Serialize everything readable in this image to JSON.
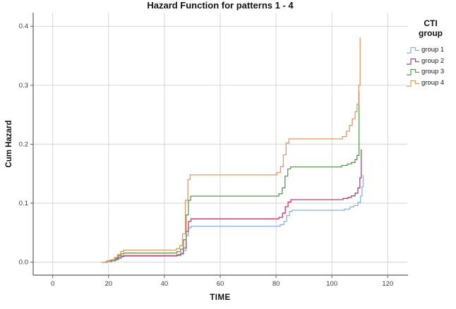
{
  "chart_data": {
    "type": "line",
    "subtype": "step",
    "title": "Hazard Function for patterns 1 - 4",
    "xlabel": "TIME",
    "ylabel": "Cum Hazard",
    "legend_title": "CTI group",
    "legend_position": "right",
    "grid": true,
    "xlim": [
      -7,
      127
    ],
    "ylim": [
      -0.022,
      0.423
    ],
    "xticks": [
      0,
      20,
      40,
      60,
      80,
      100,
      120
    ],
    "yticks": [
      0.0,
      0.1,
      0.2,
      0.3,
      0.4
    ],
    "series": [
      {
        "name": "group 1",
        "color": "#8BB1DA",
        "points": [
          [
            17.5,
            0
          ],
          [
            19.5,
            0.001
          ],
          [
            21,
            0.002
          ],
          [
            22.5,
            0.004
          ],
          [
            23.5,
            0.006
          ],
          [
            24.5,
            0.009
          ],
          [
            25.5,
            0.01
          ],
          [
            44.5,
            0.011
          ],
          [
            45.8,
            0.013
          ],
          [
            46.8,
            0.02
          ],
          [
            47.8,
            0.045
          ],
          [
            48.6,
            0.058
          ],
          [
            49.5,
            0.061
          ],
          [
            81.5,
            0.0635
          ],
          [
            82.8,
            0.069
          ],
          [
            83.8,
            0.079
          ],
          [
            84.8,
            0.086
          ],
          [
            85.8,
            0.088
          ],
          [
            104.5,
            0.09
          ],
          [
            106.5,
            0.0935
          ],
          [
            107.8,
            0.096
          ],
          [
            109.3,
            0.101
          ],
          [
            110.2,
            0.112
          ],
          [
            110.8,
            0.128
          ],
          [
            111.2,
            0.148
          ]
        ]
      },
      {
        "name": "group 2",
        "color": "#C23A6C",
        "points": [
          [
            17.5,
            0
          ],
          [
            19.5,
            0.001
          ],
          [
            21,
            0.003
          ],
          [
            22.5,
            0.005
          ],
          [
            23.5,
            0.008
          ],
          [
            24.5,
            0.01
          ],
          [
            25.5,
            0.011
          ],
          [
            44.5,
            0.0125
          ],
          [
            45.8,
            0.015
          ],
          [
            46.8,
            0.024
          ],
          [
            47.8,
            0.052
          ],
          [
            48.6,
            0.069
          ],
          [
            49.5,
            0.0735
          ],
          [
            81,
            0.076
          ],
          [
            82.3,
            0.083
          ],
          [
            83.3,
            0.094
          ],
          [
            84.3,
            0.102
          ],
          [
            85.3,
            0.106
          ],
          [
            104,
            0.108
          ],
          [
            105.8,
            0.11
          ],
          [
            107,
            0.1125
          ],
          [
            108.3,
            0.117
          ],
          [
            109.3,
            0.126
          ],
          [
            110,
            0.143
          ],
          [
            110.5,
            0.191
          ]
        ]
      },
      {
        "name": "group 3",
        "color": "#5E9657",
        "points": [
          [
            17.5,
            0
          ],
          [
            19.5,
            0.002
          ],
          [
            21,
            0.004
          ],
          [
            22.5,
            0.007
          ],
          [
            23.5,
            0.011
          ],
          [
            24.5,
            0.014
          ],
          [
            25.5,
            0.0155
          ],
          [
            44.5,
            0.018
          ],
          [
            45.8,
            0.022
          ],
          [
            46.8,
            0.038
          ],
          [
            47.8,
            0.08
          ],
          [
            48.6,
            0.105
          ],
          [
            49.4,
            0.112
          ],
          [
            81,
            0.116
          ],
          [
            82.2,
            0.126
          ],
          [
            83.2,
            0.146
          ],
          [
            84.2,
            0.158
          ],
          [
            85.2,
            0.1615
          ],
          [
            103.5,
            0.164
          ],
          [
            105.5,
            0.1665
          ],
          [
            107,
            0.169
          ],
          [
            108.3,
            0.174
          ],
          [
            109,
            0.181
          ],
          [
            109.7,
            0.29
          ]
        ]
      },
      {
        "name": "group 4",
        "color": "#E29A63",
        "points": [
          [
            17.5,
            0
          ],
          [
            19,
            0.001
          ],
          [
            20.5,
            0.004
          ],
          [
            22,
            0.008
          ],
          [
            23.2,
            0.013
          ],
          [
            24.3,
            0.018
          ],
          [
            25.3,
            0.0205
          ],
          [
            44.3,
            0.023
          ],
          [
            45.5,
            0.028
          ],
          [
            46.5,
            0.048
          ],
          [
            47.5,
            0.105
          ],
          [
            48.4,
            0.14
          ],
          [
            49.2,
            0.148
          ],
          [
            80.3,
            0.152
          ],
          [
            81.6,
            0.162
          ],
          [
            82.6,
            0.182
          ],
          [
            83.6,
            0.202
          ],
          [
            84.6,
            0.209
          ],
          [
            103.8,
            0.213
          ],
          [
            105.2,
            0.222
          ],
          [
            106.3,
            0.232
          ],
          [
            107.3,
            0.243
          ],
          [
            108.3,
            0.255
          ],
          [
            109,
            0.268
          ],
          [
            109.6,
            0.3
          ],
          [
            110.1,
            0.381
          ]
        ]
      }
    ]
  },
  "style": {
    "grid_color": "#D6D6D6",
    "spine_color": "#5E5E5E",
    "tick_label_color": "#3C3C3C"
  }
}
